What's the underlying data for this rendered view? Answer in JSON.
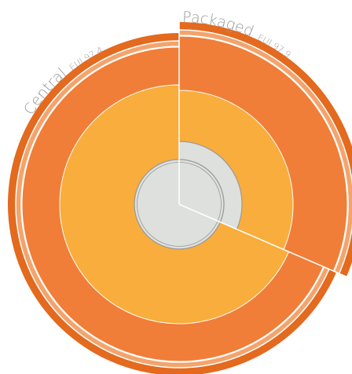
{
  "chart_data": {
    "type": "pie",
    "sectors": [
      {
        "name": "Packaged",
        "eui_text": "EUI 97.9",
        "share": 0.315
      },
      {
        "name": "Central",
        "eui_text": "EUI 97.4",
        "share": 0.685
      }
    ],
    "rings": [
      "core",
      "inner",
      "middle",
      "outer-band",
      "outline"
    ],
    "colors": {
      "outer": "#e36a1e",
      "outer_light": "#f3a46d",
      "middle": "#f07e38",
      "inner": "#f9ad3c",
      "core": "#dde0dd",
      "core_stroke": "#9a9a9a",
      "divider": "#ffffff",
      "label": "#9a9a9a"
    }
  }
}
